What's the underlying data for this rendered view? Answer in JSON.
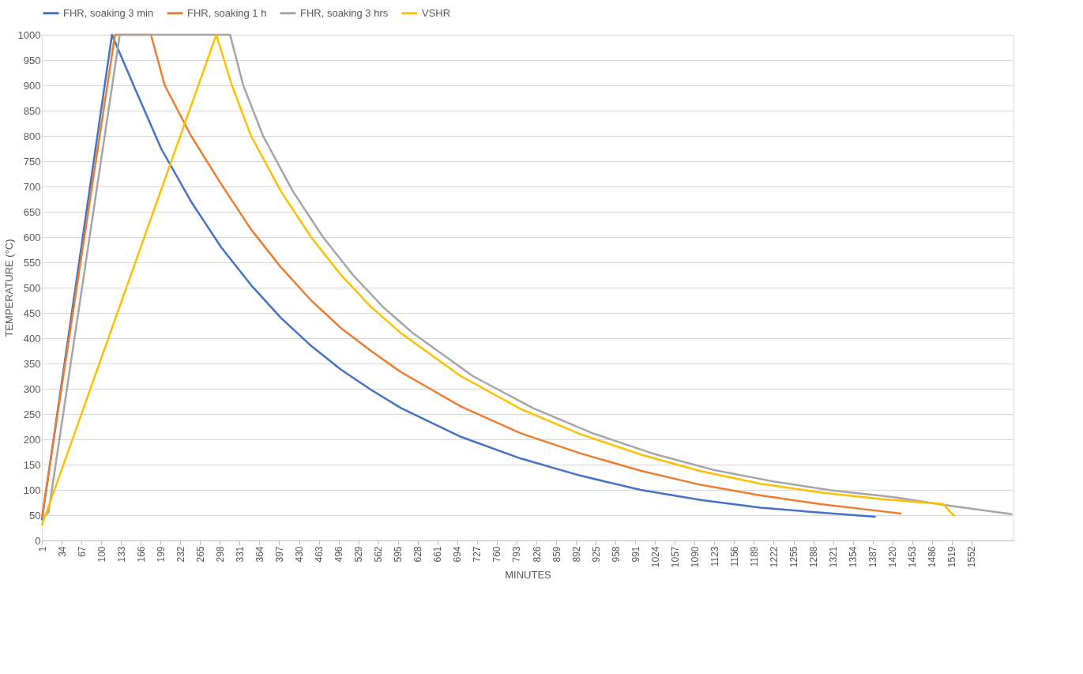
{
  "chart_data": {
    "type": "line",
    "xlabel": "MINUTES",
    "ylabel": "TEMPERATURE (°C)",
    "xlim": [
      1,
      1622
    ],
    "ylim": [
      0,
      1000
    ],
    "xticks": [
      1,
      34,
      67,
      100,
      133,
      166,
      199,
      232,
      265,
      298,
      331,
      364,
      397,
      430,
      463,
      496,
      529,
      562,
      595,
      628,
      661,
      694,
      727,
      760,
      793,
      826,
      859,
      892,
      925,
      958,
      991,
      1024,
      1057,
      1090,
      1123,
      1156,
      1189,
      1222,
      1255,
      1288,
      1321,
      1354,
      1387,
      1420,
      1453,
      1486,
      1519,
      1552
    ],
    "yticks": [
      0,
      50,
      100,
      150,
      200,
      250,
      300,
      350,
      400,
      450,
      500,
      550,
      600,
      650,
      700,
      750,
      800,
      850,
      900,
      950,
      1000
    ],
    "grid": "y",
    "legend": "top",
    "marker": "none",
    "line_style": "solid",
    "series": [
      {
        "name": "FHR, soaking 3 min",
        "color": "#4472c4",
        "x": [
          1,
          118,
          154,
          200,
          250,
          300,
          350,
          400,
          450,
          500,
          550,
          600,
          700,
          800,
          900,
          1000,
          1100,
          1200,
          1300,
          1392
        ],
        "values": [
          40,
          1000,
          900,
          775,
          670,
          580,
          505,
          440,
          385,
          338,
          298,
          262,
          205,
          162,
          128,
          100,
          80,
          65,
          55,
          47
        ]
      },
      {
        "name": "FHR, soaking 1 h",
        "color": "#ed7d31",
        "x": [
          1,
          123,
          183,
          206,
          250,
          300,
          350,
          400,
          450,
          500,
          550,
          600,
          700,
          800,
          900,
          1000,
          1100,
          1200,
          1300,
          1400,
          1435
        ],
        "values": [
          45,
          1000,
          1000,
          900,
          800,
          705,
          615,
          540,
          475,
          420,
          375,
          333,
          265,
          212,
          172,
          138,
          110,
          89,
          72,
          58,
          53
        ]
      },
      {
        "name": "FHR, soaking 3 hrs",
        "color": "#a5a5a5",
        "x": [
          1,
          12,
          131,
          315,
          337,
          370,
          420,
          470,
          520,
          570,
          620,
          720,
          820,
          920,
          1020,
          1120,
          1220,
          1320,
          1420,
          1520,
          1620
        ],
        "values": [
          45,
          55,
          1000,
          1000,
          900,
          800,
          690,
          600,
          525,
          462,
          410,
          325,
          262,
          212,
          172,
          140,
          117,
          99,
          86,
          68,
          52
        ]
      },
      {
        "name": "VSHR",
        "color": "#ffc000",
        "x": [
          1,
          292,
          318,
          350,
          400,
          450,
          500,
          550,
          600,
          700,
          800,
          900,
          1000,
          1100,
          1200,
          1300,
          1400,
          1505,
          1515,
          1524
        ],
        "values": [
          30,
          1000,
          900,
          800,
          690,
          600,
          525,
          462,
          410,
          325,
          260,
          210,
          170,
          137,
          112,
          95,
          82,
          72,
          58,
          48
        ]
      }
    ]
  }
}
